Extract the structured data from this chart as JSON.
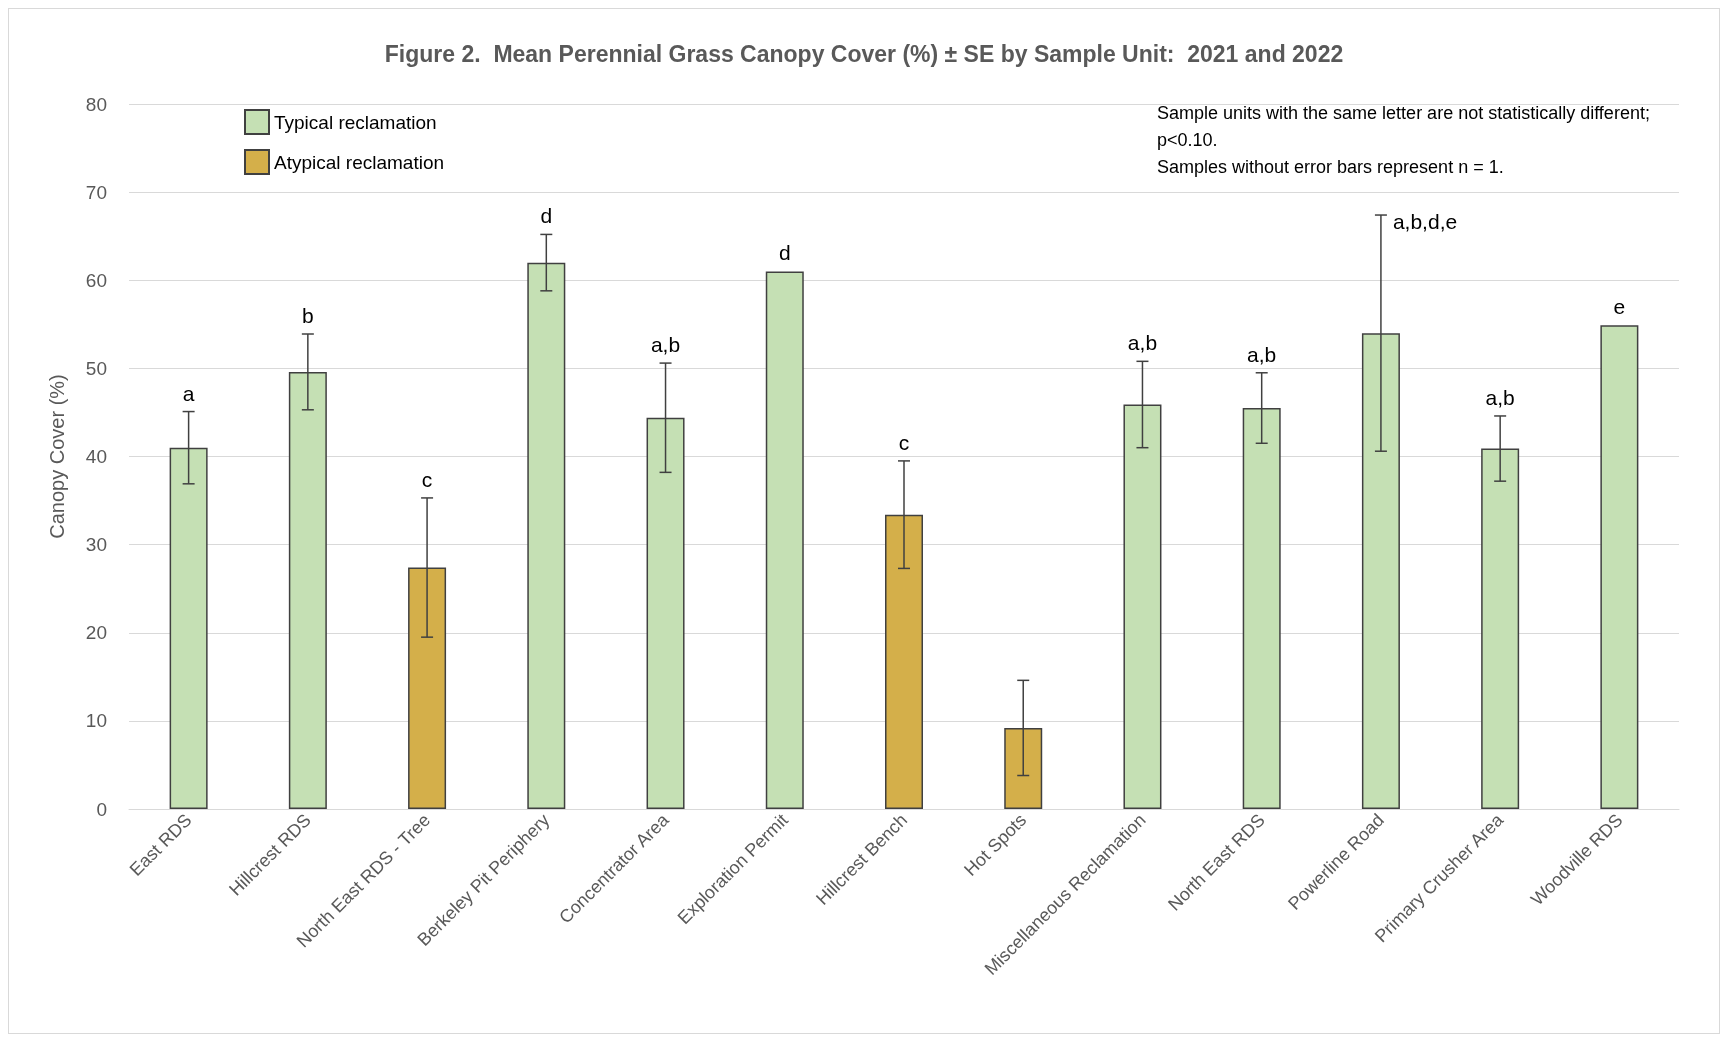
{
  "chart_data": {
    "type": "bar",
    "title": "Figure 2.  Mean Perennial Grass Canopy Cover (%) ± SE by Sample Unit:  2021 and 2022",
    "ylabel": "Canopy Cover (%)",
    "categories": [
      "East RDS",
      "Hillcrest RDS",
      "North East RDS - Tree",
      "Berkeley Pit Periphery",
      "Concentrator Area",
      "Exploration Permit",
      "Hillcrest Bench",
      "Hot Spots",
      "Miscellaneous Reclamation",
      "North East RDS",
      "Powerline Road",
      "Primary Crusher Area",
      "Woodville RDS"
    ],
    "series": [
      {
        "name": "Typical reclamation",
        "color": "#c5e0b4",
        "values": [
          41,
          49.6,
          null,
          62,
          44.4,
          61,
          null,
          null,
          45.9,
          45.5,
          54,
          40.9,
          54.9
        ],
        "errors": [
          4.1,
          4.3,
          null,
          3.2,
          6.2,
          null,
          null,
          null,
          4.9,
          4.0,
          13.4,
          3.7,
          null
        ]
      },
      {
        "name": "Atypical reclamation",
        "color": "#d4af4a",
        "values": [
          null,
          null,
          27.4,
          null,
          null,
          null,
          33.4,
          9.2,
          null,
          null,
          null,
          null,
          null
        ],
        "errors": [
          null,
          null,
          7.9,
          null,
          null,
          null,
          6.1,
          5.4,
          null,
          null,
          null,
          null,
          null
        ]
      }
    ],
    "ylim": [
      0,
      80
    ],
    "yticks": [
      0,
      10,
      20,
      30,
      40,
      50,
      60,
      70,
      80
    ],
    "grid": "y",
    "legend": "top left",
    "annotations": [
      {
        "text": "a",
        "x": "East RDS",
        "y": 45.1
      },
      {
        "text": "b",
        "x": "Hillcrest RDS",
        "y": 53.9
      },
      {
        "text": "c",
        "x": "North East RDS - Tree",
        "y": 35.3
      },
      {
        "text": "d",
        "x": "Berkeley Pit Periphery",
        "y": 65.2
      },
      {
        "text": "a,b",
        "x": "Concentrator Area",
        "y": 50.6
      },
      {
        "text": "d",
        "x": "Exploration Permit",
        "y": 61
      },
      {
        "text": "c",
        "x": "Hillcrest Bench",
        "y": 39.5
      },
      {
        "text": "a,b",
        "x": "Miscellaneous Reclamation",
        "y": 50.8
      },
      {
        "text": "a,b",
        "x": "North East RDS",
        "y": 49.5
      },
      {
        "text": "a,b,d,e",
        "x": "Powerline Road",
        "y": 67.4
      },
      {
        "text": "a,b",
        "x": "Primary Crusher Area",
        "y": 44.6
      },
      {
        "text": "e",
        "x": "Woodville RDS",
        "y": 54.9
      },
      "Sample units with the same letter are not statistically different; p<0.10.",
      "Samples without error bars represent n = 1."
    ]
  }
}
